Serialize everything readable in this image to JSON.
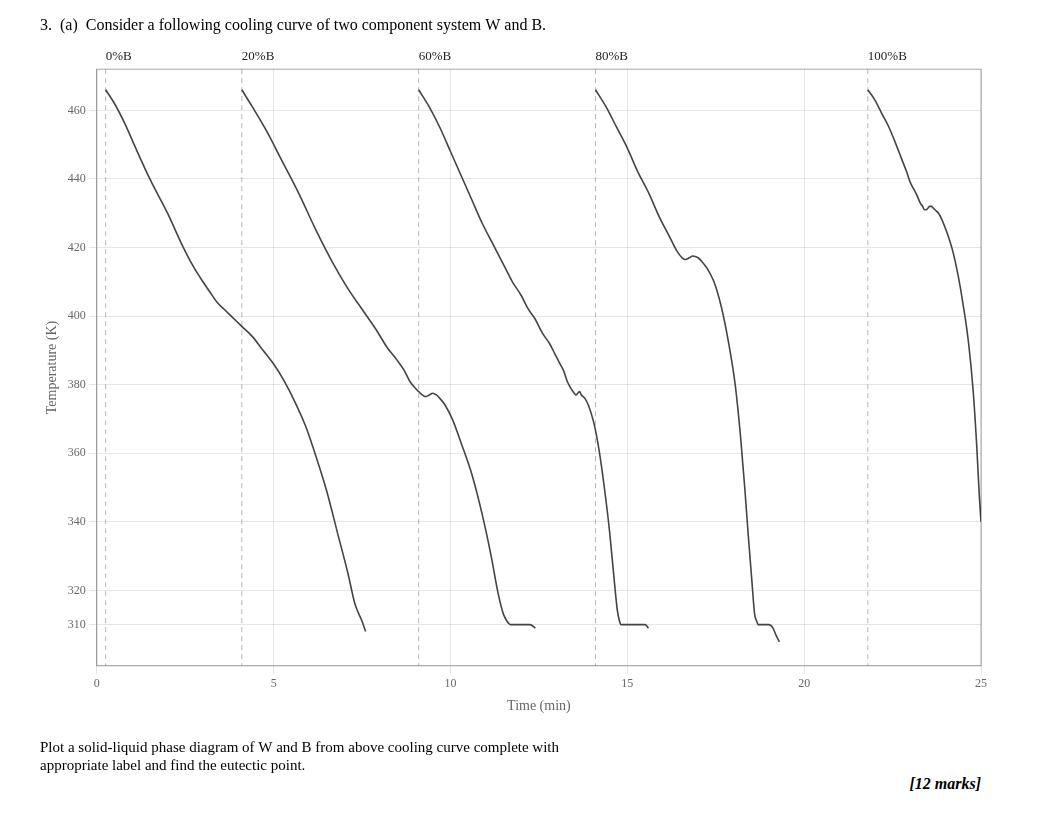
{
  "chart_data": {
    "type": "line",
    "title": "3.  (a)  Consider a following cooling curve of two component system W and B.",
    "subtitle": [
      "Plot a solid-liquid phase diagram of W and B from above cooling curve complete with",
      "appropriate label and find the eutectic point."
    ],
    "annotations": [
      "[12 marks]"
    ],
    "x_label": "Time (min)",
    "y_label": "Temperature (K)",
    "xlim": [
      0,
      25
    ],
    "ylim": [
      298,
      472
    ],
    "xticks": [
      0,
      5,
      10,
      15,
      20,
      25
    ],
    "yticks": [
      310,
      320,
      340,
      360,
      380,
      400,
      420,
      440,
      460
    ],
    "grid": true,
    "vlines": [
      0.25,
      4.1,
      9.1,
      14.1,
      21.8
    ],
    "series": [
      {
        "name": "0%B",
        "color": "#444444",
        "x": [
          0.25,
          0.5,
          0.8,
          1.1,
          1.5,
          2.0,
          2.4,
          2.7,
          3.0,
          3.2,
          3.4,
          3.6,
          3.8,
          4.1,
          4.4,
          4.7,
          5.0,
          5.3,
          5.6,
          5.9,
          6.2,
          6.5,
          6.8,
          7.1,
          7.3,
          7.5,
          7.6
        ],
        "values": [
          466,
          462,
          456,
          449,
          440,
          430,
          421,
          415,
          410,
          407,
          404,
          402,
          400,
          397,
          394,
          390,
          386,
          381,
          375,
          368,
          359,
          349,
          337,
          325,
          316,
          311,
          308
        ]
      },
      {
        "name": "20%B",
        "color": "#444444",
        "x": [
          4.1,
          4.4,
          4.8,
          5.2,
          5.7,
          6.2,
          6.7,
          7.1,
          7.5,
          7.9,
          8.2,
          8.5,
          8.7,
          8.85,
          9.0,
          9.1,
          9.2,
          9.3,
          9.4,
          9.5,
          9.6,
          9.7,
          9.85,
          10.05,
          10.3,
          10.6,
          10.9,
          11.15,
          11.35,
          11.5,
          11.6,
          11.7,
          11.8,
          11.95,
          12.1,
          12.25,
          12.4
        ],
        "values": [
          466,
          461,
          454,
          446,
          436,
          425,
          415,
          408,
          402,
          396,
          391,
          387,
          384,
          381,
          379,
          378,
          377,
          376.5,
          377,
          377.5,
          377,
          376,
          374,
          370,
          363,
          354,
          342,
          330,
          319,
          313,
          311,
          310,
          310,
          310,
          310,
          310,
          309
        ]
      },
      {
        "name": "60%B",
        "color": "#444444",
        "x": [
          9.1,
          9.4,
          9.7,
          10.0,
          10.3,
          10.6,
          10.9,
          11.2,
          11.5,
          11.75,
          12.0,
          12.2,
          12.4,
          12.6,
          12.8,
          12.95,
          13.1,
          13.2,
          13.3,
          13.4,
          13.5,
          13.55,
          13.6,
          13.65,
          13.7,
          13.75,
          13.8,
          13.9,
          14.05,
          14.2,
          14.35,
          14.5,
          14.62,
          14.72,
          14.78,
          14.82,
          14.87,
          14.95,
          15.05,
          15.2,
          15.35,
          15.5,
          15.6
        ],
        "values": [
          466,
          461,
          455,
          448,
          441,
          434,
          427,
          421,
          415,
          410,
          406,
          402,
          399,
          395,
          392,
          389,
          386,
          384,
          381,
          379,
          377.5,
          377,
          377.5,
          378,
          377,
          376.5,
          376,
          374,
          369,
          361,
          350,
          337,
          324,
          314,
          311,
          310,
          310,
          310,
          310,
          310,
          310,
          310,
          309
        ]
      },
      {
        "name": "80%B",
        "color": "#444444",
        "x": [
          14.1,
          14.4,
          14.7,
          15.0,
          15.3,
          15.6,
          15.9,
          16.2,
          16.4,
          16.55,
          16.65,
          16.75,
          16.85,
          17.0,
          17.1,
          17.25,
          17.45,
          17.65,
          17.85,
          18.05,
          18.2,
          18.32,
          18.42,
          18.52,
          18.6,
          18.66,
          18.7,
          18.75,
          18.85,
          19.0,
          19.12,
          19.2,
          19.3
        ],
        "values": [
          466,
          461,
          455,
          449,
          442,
          436,
          429,
          423,
          419,
          417,
          416.5,
          417,
          417.5,
          417,
          416,
          414,
          410,
          403,
          393,
          380,
          365,
          350,
          336,
          323,
          313,
          311,
          310,
          310,
          310,
          310,
          309,
          307,
          305
        ]
      },
      {
        "name": "100%B",
        "color": "#444444",
        "x": [
          21.8,
          22.0,
          22.2,
          22.4,
          22.6,
          22.75,
          22.9,
          23.0,
          23.1,
          23.2,
          23.28,
          23.35,
          23.4,
          23.45,
          23.5,
          23.55,
          23.6,
          23.65,
          23.7,
          23.8,
          23.9,
          24.05,
          24.2,
          24.35,
          24.5,
          24.65,
          24.78,
          24.88,
          24.95,
          25.0
        ],
        "values": [
          466,
          463,
          459,
          455,
          450,
          446,
          442,
          439,
          437,
          435,
          433,
          432,
          431,
          431,
          431.5,
          432,
          432,
          431.5,
          431,
          430,
          428,
          424,
          419,
          412,
          403,
          392,
          378,
          362,
          348,
          340
        ]
      }
    ]
  }
}
